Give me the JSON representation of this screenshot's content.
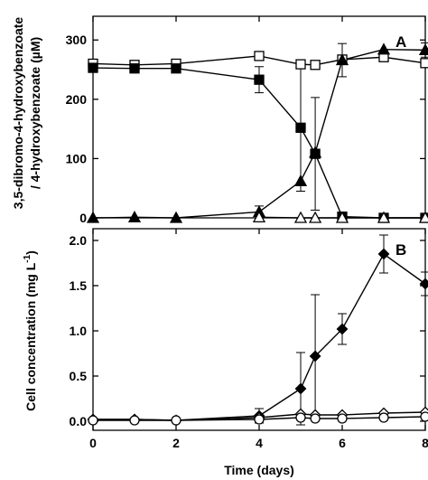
{
  "chart_data": [
    {
      "type": "line",
      "panel_label": "A",
      "xlabel": "",
      "ylabel": "3,5-dibromo-4-hydroxybenzoate / 4-hydroxybenzoate (µM)",
      "ylabel_lines": [
        "3,5-dibromo-4-hydroxybenzoate",
        "/ 4-hydroxybenzoate (µM)"
      ],
      "xlim": [
        0,
        8
      ],
      "ylim": [
        0,
        340
      ],
      "xticks": [
        "0",
        "2",
        "4",
        "6",
        "8"
      ],
      "yticks": [
        "0",
        "100",
        "200",
        "300"
      ],
      "grid": false,
      "series": [
        {
          "marker": "open-square",
          "x": [
            0,
            1,
            2,
            4,
            5,
            5.35,
            6,
            7,
            8
          ],
          "y": [
            260,
            258,
            260,
            273,
            259,
            258,
            267,
            271,
            261
          ],
          "err": [
            0,
            0,
            0,
            0,
            0,
            0,
            0,
            0,
            0
          ]
        },
        {
          "marker": "filled-square",
          "x": [
            0,
            1,
            2,
            4,
            5,
            5.35,
            6,
            7,
            8
          ],
          "y": [
            253,
            252,
            252,
            233,
            152,
            108,
            2,
            0,
            0
          ],
          "err": [
            0,
            0,
            0,
            22,
            107,
            95,
            6,
            0,
            0
          ]
        },
        {
          "marker": "filled-triangle",
          "x": [
            0,
            1,
            2,
            4,
            5,
            5.35,
            6,
            7,
            8
          ],
          "y": [
            0,
            1,
            0,
            10,
            62,
            110,
            266,
            284,
            283
          ],
          "err": [
            0,
            0,
            0,
            10,
            0,
            0,
            28,
            0,
            12
          ]
        },
        {
          "marker": "open-triangle",
          "x": [
            4,
            5,
            5.35,
            6,
            7,
            8
          ],
          "y": [
            1,
            0,
            0,
            0,
            0,
            0
          ],
          "err": [
            0,
            0,
            0,
            0,
            0,
            0
          ]
        }
      ]
    },
    {
      "type": "line",
      "panel_label": "B",
      "xlabel": "Time (days)",
      "ylabel": "Cell concentration (mg L -1)",
      "ylabel_main": "Cell concentration (mg L",
      "ylabel_sup": "-1",
      "ylabel_close": ")",
      "xlim": [
        0,
        8
      ],
      "ylim": [
        -0.1,
        2.13
      ],
      "xticks": [
        "0",
        "2",
        "4",
        "6",
        "8"
      ],
      "yticks": [
        "0.0",
        "0.5",
        "1.0",
        "1.5",
        "2.0"
      ],
      "grid": false,
      "series": [
        {
          "marker": "filled-diamond",
          "x": [
            0,
            1,
            2,
            4,
            5,
            5.35,
            6,
            7,
            8
          ],
          "y": [
            0.02,
            0.02,
            0.01,
            0.06,
            0.36,
            0.72,
            1.02,
            1.85,
            1.52
          ],
          "err": [
            0,
            0,
            0,
            0.08,
            0.4,
            0.68,
            0.17,
            0.21,
            0.13
          ]
        },
        {
          "marker": "open-diamond",
          "x": [
            0,
            1,
            2,
            4,
            5,
            5.35,
            6,
            7,
            8
          ],
          "y": [
            0.02,
            0.02,
            0.01,
            0.04,
            0.08,
            0.07,
            0.07,
            0.09,
            0.1
          ],
          "err": [
            0,
            0,
            0,
            0,
            0,
            0,
            0,
            0,
            0
          ]
        },
        {
          "marker": "open-circle",
          "x": [
            0,
            1,
            2,
            4,
            5,
            5.35,
            6,
            7,
            8
          ],
          "y": [
            0.01,
            0.01,
            0.01,
            0.02,
            0.04,
            0.03,
            0.03,
            0.04,
            0.05
          ],
          "err": [
            0,
            0,
            0,
            0,
            0,
            0,
            0,
            0,
            0
          ]
        }
      ]
    }
  ]
}
